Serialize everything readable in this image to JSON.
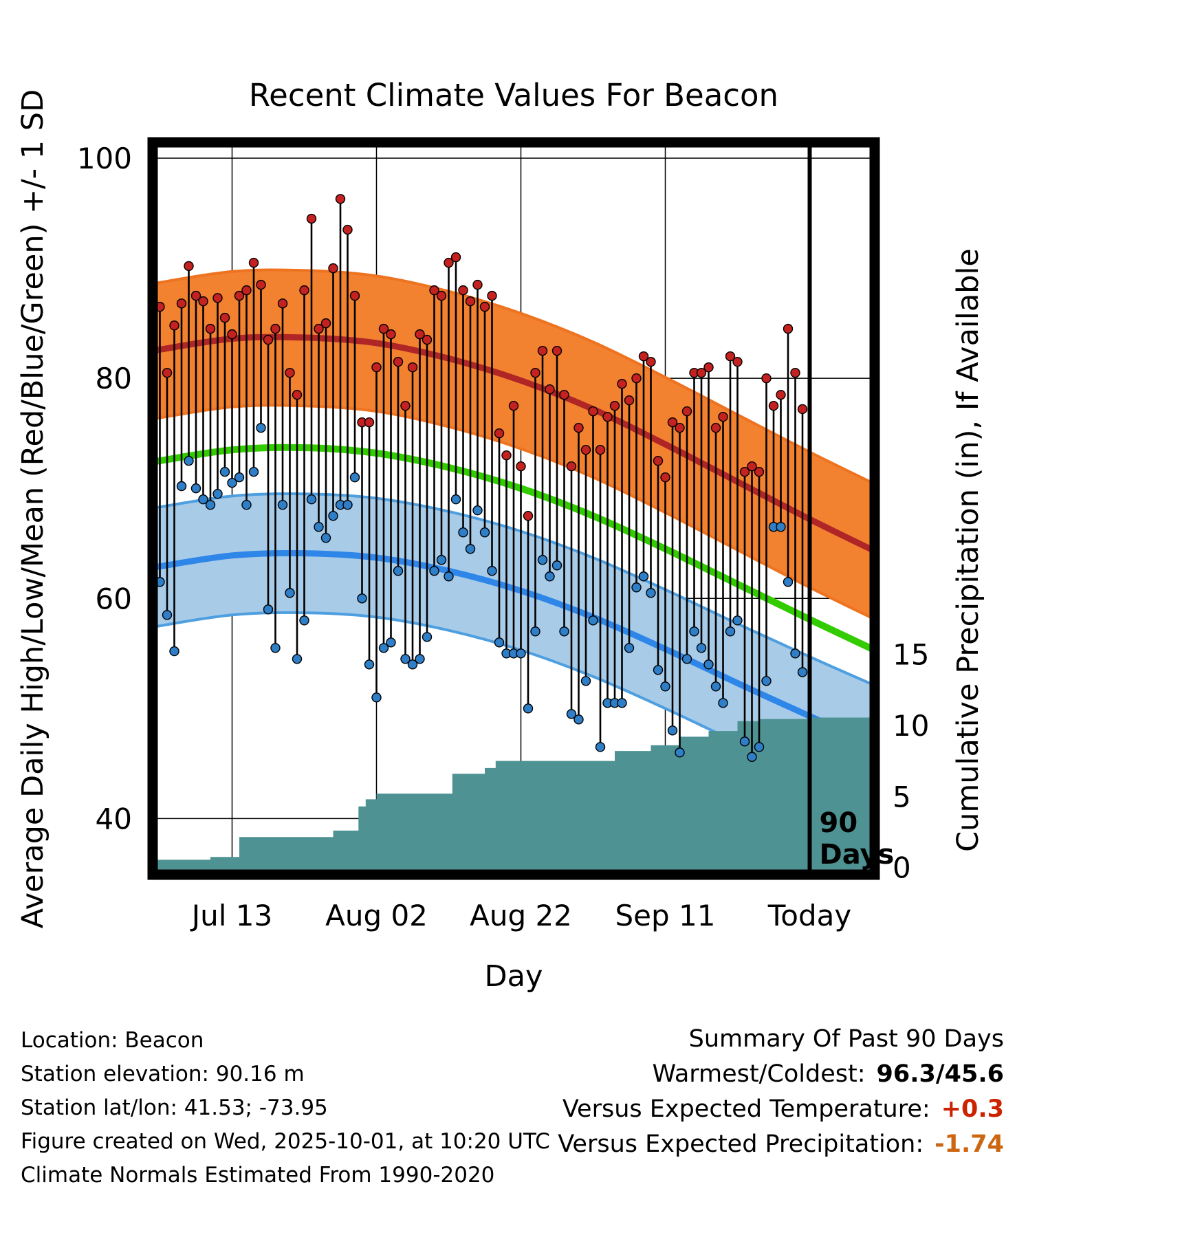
{
  "title": "Recent Climate Values For Beacon",
  "footer": {
    "lines": [
      "Location: Beacon",
      "Station elevation: 90.16 m",
      "Station lat/lon: 41.53; -73.95",
      "Figure created on Wed, 2025-10-01, at 10:20 UTC",
      "Climate Normals Estimated From 1990-2020"
    ]
  },
  "summary": {
    "heading": "Summary Of Past 90 Days",
    "rows": [
      {
        "label": "Warmest/Coldest:",
        "value": "96.3/45.6",
        "color": "#000000"
      },
      {
        "label": "Versus Expected Temperature:",
        "value": "+0.3",
        "color": "#cc2200"
      },
      {
        "label": "Versus Expected Precipitation:",
        "value": "-1.74",
        "color": "#cc6611"
      }
    ]
  },
  "chart_data": {
    "type": "line",
    "title": "Recent Climate Values For Beacon",
    "xlabel": "Day",
    "ylabel_left": "Average Daily High/Low/Mean (Red/Blue/Green) +/- 1 SD",
    "ylabel_right": "Cumulative Precipitation (in), If Available",
    "xlim_days": [
      -1,
      99
    ],
    "ylim_left": [
      34.9,
      101.44
    ],
    "ylim_right": [
      -0.5,
      51
    ],
    "x_ticks": [
      {
        "day": 10,
        "label": "Jul 13"
      },
      {
        "day": 30,
        "label": "Aug 02"
      },
      {
        "day": 50,
        "label": "Aug 22"
      },
      {
        "day": 70,
        "label": "Sep 11"
      },
      {
        "day": 90,
        "label": "Today"
      }
    ],
    "yticks_left": [
      40,
      60,
      80,
      100
    ],
    "yticks_right": [
      0,
      5,
      10,
      15
    ],
    "grid": true,
    "today_day": 90,
    "annotation_lines": [
      "90",
      "Days"
    ],
    "colors": {
      "high_band": "#F28130",
      "high_band_edge": "#EE7320",
      "high_mean": "#B02525",
      "mean_line": "#33CC00",
      "low_band": "#A8CBE8",
      "low_band_edge": "#4E9FE0",
      "low_mean": "#2E86E8",
      "precip_fill": "#4F9293",
      "high_dot": "#C42121",
      "low_dot": "#2E7EC8",
      "stem": "#000000",
      "grid": "#000000"
    },
    "normals": {
      "x": [
        -1,
        10,
        20,
        30,
        40,
        50,
        60,
        70,
        80,
        90,
        99
      ],
      "high_upper": [
        88.6,
        89.7,
        89.8,
        89.3,
        87.9,
        85.9,
        83.3,
        80.1,
        76.7,
        73.3,
        70.4
      ],
      "high_mean": [
        82.5,
        83.6,
        83.7,
        83.2,
        81.8,
        79.8,
        77.2,
        74.0,
        70.6,
        67.2,
        64.3
      ],
      "high_lower": [
        76.3,
        77.4,
        77.5,
        77.0,
        75.6,
        73.6,
        71.0,
        67.8,
        64.4,
        61.0,
        58.1
      ],
      "mean": [
        72.4,
        73.5,
        73.7,
        73.2,
        71.9,
        70.0,
        67.5,
        64.5,
        61.3,
        58.1,
        55.3
      ],
      "low_upper": [
        68.2,
        69.3,
        69.5,
        69.1,
        67.9,
        66.1,
        63.7,
        60.8,
        57.7,
        54.7,
        52.1
      ],
      "low_mean": [
        62.8,
        63.9,
        64.1,
        63.7,
        62.5,
        60.7,
        58.3,
        55.4,
        52.3,
        49.3,
        46.7
      ],
      "low_lower": [
        57.4,
        58.5,
        58.7,
        58.3,
        57.1,
        55.3,
        52.9,
        50.0,
        46.9,
        43.9,
        41.3
      ]
    },
    "daily": {
      "high": [
        86.5,
        80.5,
        84.8,
        86.8,
        90.2,
        87.5,
        87.0,
        84.5,
        87.3,
        85.5,
        84.0,
        87.5,
        88.0,
        90.5,
        88.5,
        83.5,
        84.5,
        86.8,
        80.5,
        78.5,
        88.0,
        94.5,
        84.5,
        85.0,
        90.0,
        96.3,
        93.5,
        87.5,
        76.0,
        76.0,
        81.0,
        84.5,
        84.0,
        81.5,
        77.5,
        81.0,
        84.0,
        83.5,
        88.0,
        87.5,
        90.5,
        91.0,
        88.0,
        87.0,
        88.5,
        86.5,
        87.5,
        75.0,
        73.0,
        77.5,
        72.0,
        67.5,
        80.5,
        82.5,
        79.0,
        82.5,
        78.5,
        72.0,
        75.5,
        73.5,
        77.0,
        73.5,
        76.5,
        77.5,
        79.5,
        78.0,
        80.0,
        82.0,
        81.5,
        72.5,
        71.0,
        76.0,
        75.5,
        77.0,
        80.5,
        80.5,
        81.0,
        75.5,
        76.5,
        82.0,
        81.5,
        71.5,
        72.0,
        71.5,
        80.0,
        77.5,
        78.5,
        84.5,
        80.5,
        77.2
      ],
      "low": [
        61.5,
        58.5,
        55.2,
        70.2,
        72.5,
        70.0,
        69.0,
        68.5,
        69.5,
        71.5,
        70.5,
        71.0,
        68.5,
        71.5,
        75.5,
        59.0,
        55.5,
        68.5,
        60.5,
        54.5,
        58.0,
        69.0,
        66.5,
        65.5,
        67.5,
        68.5,
        68.5,
        71.0,
        60.0,
        54.0,
        51.0,
        55.5,
        56.0,
        62.5,
        54.5,
        54.0,
        54.5,
        56.5,
        62.5,
        63.5,
        62.0,
        69.0,
        66.0,
        64.5,
        68.0,
        66.0,
        62.5,
        56.0,
        55.0,
        55.0,
        55.0,
        50.0,
        57.0,
        63.5,
        62.0,
        63.0,
        57.0,
        49.5,
        49.0,
        52.5,
        58.0,
        46.5,
        50.5,
        50.5,
        50.5,
        55.5,
        61.0,
        62.0,
        60.5,
        53.5,
        52.0,
        48.0,
        46.0,
        54.5,
        57.0,
        55.5,
        54.0,
        52.0,
        50.5,
        57.0,
        58.0,
        47.0,
        45.6,
        46.5,
        52.5,
        66.5,
        66.5,
        61.5,
        55.0,
        53.3
      ]
    },
    "precip_cumulative": {
      "points": [
        [
          -1,
          0.55
        ],
        [
          7,
          0.55
        ],
        [
          7,
          0.75
        ],
        [
          11,
          0.75
        ],
        [
          11,
          2.15
        ],
        [
          24,
          2.15
        ],
        [
          24,
          2.6
        ],
        [
          27.5,
          2.6
        ],
        [
          27.5,
          4.3
        ],
        [
          28.5,
          4.3
        ],
        [
          28.5,
          4.8
        ],
        [
          30,
          4.8
        ],
        [
          30,
          5.2
        ],
        [
          40.5,
          5.2
        ],
        [
          40.5,
          6.6
        ],
        [
          45,
          6.6
        ],
        [
          45,
          7.0
        ],
        [
          46.5,
          7.0
        ],
        [
          46.5,
          7.5
        ],
        [
          63,
          7.5
        ],
        [
          63,
          8.2
        ],
        [
          68,
          8.2
        ],
        [
          68,
          8.6
        ],
        [
          72,
          8.6
        ],
        [
          72,
          9.2
        ],
        [
          76,
          9.2
        ],
        [
          76,
          9.6
        ],
        [
          80,
          9.6
        ],
        [
          80,
          10.3
        ],
        [
          83,
          10.3
        ],
        [
          83,
          10.45
        ],
        [
          90,
          10.45
        ],
        [
          90,
          10.55
        ],
        [
          99,
          10.55
        ]
      ]
    }
  }
}
